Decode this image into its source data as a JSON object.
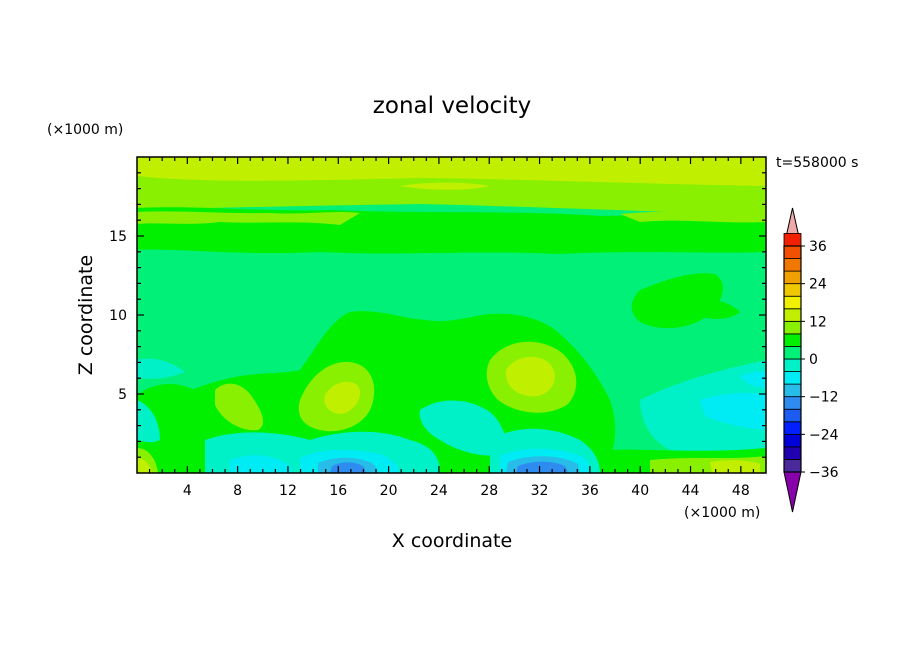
{
  "chart_data": {
    "type": "heatmap",
    "title": "zonal velocity",
    "xlabel": "X coordinate",
    "ylabel": "Z coordinate",
    "x_unit": "(×1000 m)",
    "y_unit": "(×1000 m)",
    "time_label": "t=558000 s",
    "xlim": [
      0,
      50
    ],
    "ylim": [
      0,
      20
    ],
    "x_ticks": [
      4,
      8,
      12,
      16,
      20,
      24,
      28,
      32,
      36,
      40,
      44,
      48
    ],
    "y_ticks": [
      5,
      10,
      15
    ],
    "colorbar": {
      "levels": [
        -40,
        -36,
        -32,
        -28,
        -24,
        -20,
        -16,
        -12,
        -8,
        -4,
        0,
        4,
        8,
        12,
        16,
        20,
        24,
        28,
        32,
        36,
        40
      ],
      "labels": [
        36,
        24,
        12,
        0,
        -12,
        -24,
        -36
      ],
      "colors": [
        "#8800aa",
        "#4a2a9a",
        "#2000b0",
        "#0000d8",
        "#0020ff",
        "#1c5cf0",
        "#2e8cf0",
        "#28bce8",
        "#00ecf4",
        "#00f0c8",
        "#00f078",
        "#00f000",
        "#88f000",
        "#c0f000",
        "#f0f000",
        "#f0c800",
        "#f0a000",
        "#f07800",
        "#f05000",
        "#f02000",
        "#f0a8a8"
      ]
    },
    "background": "#00f078"
  }
}
